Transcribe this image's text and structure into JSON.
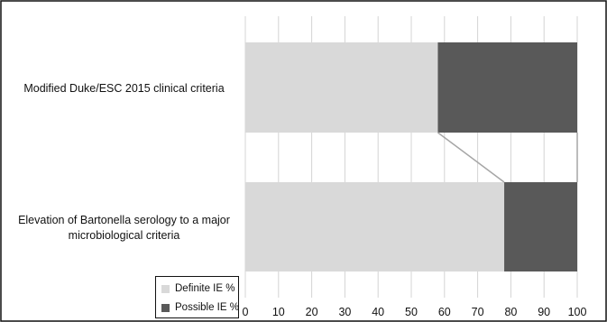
{
  "chart_data": {
    "type": "bar",
    "orientation": "horizontal",
    "stacked": true,
    "percent": true,
    "categories": [
      "Modified Duke/ESC 2015 clinical criteria",
      "Elevation of Bartonella serology to a major microbiological criteria"
    ],
    "series": [
      {
        "name": "Definite IE %",
        "values": [
          58,
          78
        ],
        "color": "#d9d9d9"
      },
      {
        "name": "Possible IE %",
        "values": [
          42,
          22
        ],
        "color": "#595959"
      }
    ],
    "xlim": [
      0,
      100
    ],
    "xticks": [
      0,
      10,
      20,
      30,
      40,
      50,
      60,
      70,
      80,
      90,
      100
    ],
    "grid": true,
    "series_lines": true,
    "legend_position": "bottom-left"
  }
}
